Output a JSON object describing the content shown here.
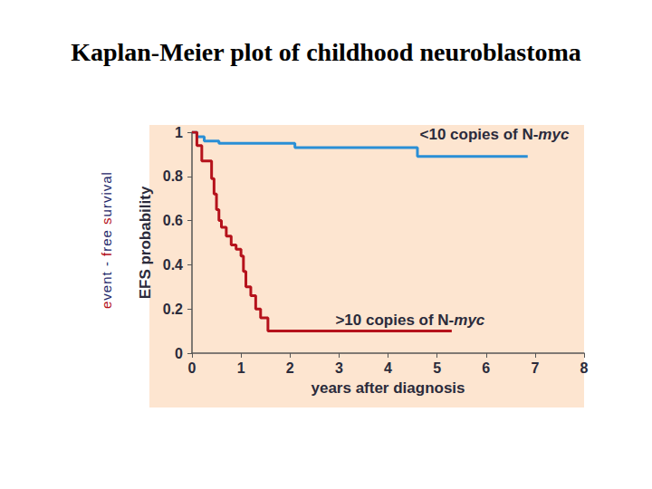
{
  "chart_data": {
    "type": "step",
    "title": "Kaplan-Meier plot of childhood neuroblastoma",
    "side_label": "event - free survival",
    "x_label": "years after diagnosis",
    "y_label": "EFS probability",
    "xlim": [
      0,
      8
    ],
    "xticks": [
      0,
      1,
      2,
      3,
      4,
      5,
      6,
      7,
      8
    ],
    "ylim": [
      0,
      1
    ],
    "yticks": [
      0,
      0.2,
      0.4,
      0.6,
      0.8,
      1
    ],
    "grid": false,
    "series": [
      {
        "name": "<10 copies of N-myc",
        "color": "#2a8fd6",
        "label_at": [
          6.17,
          0.99
        ],
        "x": [
          0,
          0.1,
          0.25,
          0.55,
          2.1,
          4.6,
          6.85
        ],
        "values": [
          1,
          0.98,
          0.96,
          0.95,
          0.93,
          0.89,
          0.89
        ]
      },
      {
        "name": ">10 copies of N-myc",
        "color": "#b5121b",
        "label_at": [
          4.45,
          0.15
        ],
        "x": [
          0,
          0.1,
          0.2,
          0.4,
          0.45,
          0.5,
          0.55,
          0.6,
          0.7,
          0.8,
          0.9,
          1.0,
          1.05,
          1.1,
          1.2,
          1.3,
          1.4,
          1.55,
          5.3
        ],
        "values": [
          1,
          0.94,
          0.87,
          0.79,
          0.72,
          0.65,
          0.6,
          0.57,
          0.53,
          0.49,
          0.47,
          0.44,
          0.37,
          0.3,
          0.26,
          0.2,
          0.16,
          0.1,
          0.1
        ]
      }
    ]
  }
}
